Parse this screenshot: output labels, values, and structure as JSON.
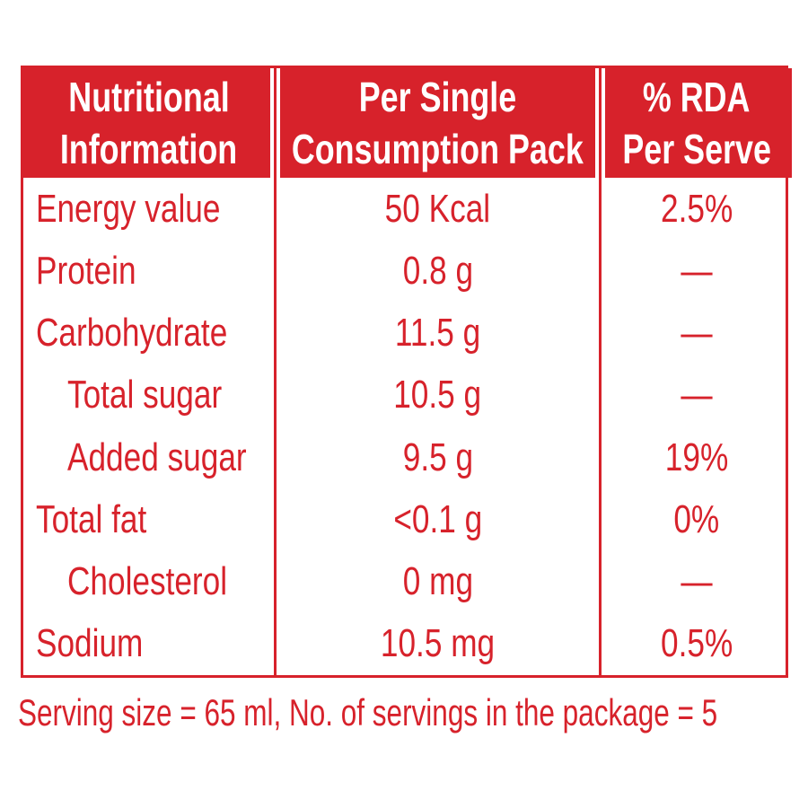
{
  "colors": {
    "accent_red": "#d7222b",
    "header_text": "#ffffff",
    "background": "#ffffff"
  },
  "table": {
    "header": [
      {
        "line1": "Nutritional",
        "line2": "Information"
      },
      {
        "line1": "Per Single",
        "line2": "Consumption Pack"
      },
      {
        "line1": "% RDA",
        "line2": "Per Serve"
      }
    ],
    "rows": [
      {
        "label": "Energy value",
        "indent": false,
        "value": "50 Kcal",
        "rda": "2.5%"
      },
      {
        "label": "Protein",
        "indent": false,
        "value": "0.8 g",
        "rda": "—"
      },
      {
        "label": "Carbohydrate",
        "indent": false,
        "value": "11.5 g",
        "rda": "—"
      },
      {
        "label": "Total sugar",
        "indent": true,
        "value": "10.5 g",
        "rda": "—"
      },
      {
        "label": "Added sugar",
        "indent": true,
        "value": "9.5 g",
        "rda": "19%"
      },
      {
        "label": "Total fat",
        "indent": false,
        "value": "<0.1 g",
        "rda": "0%"
      },
      {
        "label": "Cholesterol",
        "indent": true,
        "value": "0 mg",
        "rda": "—"
      },
      {
        "label": "Sodium",
        "indent": false,
        "value": "10.5 mg",
        "rda": "0.5%"
      }
    ]
  },
  "footer": {
    "serving_info": "Serving size = 65 ml, No. of servings in the package = 5"
  }
}
